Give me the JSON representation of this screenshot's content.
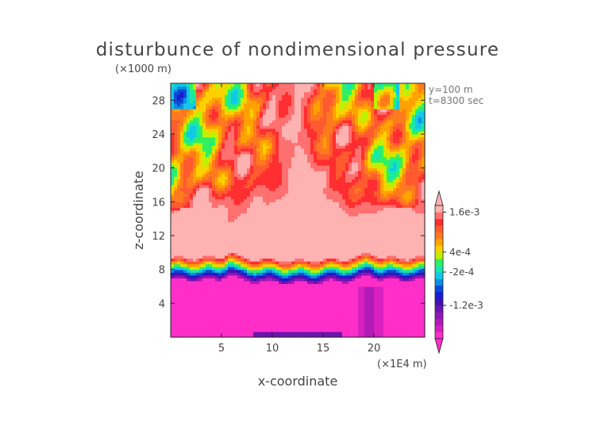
{
  "chart_data": {
    "type": "heatmap",
    "title": "disturbunce of nondimensional pressure",
    "xlabel": "x-coordinate",
    "ylabel": "z-coordinate",
    "x_unit": "(×1E4 m)",
    "y_unit": "(×1000 m)",
    "annotations": [
      "y=100 m",
      "t=8300 sec"
    ],
    "xlim": [
      0,
      25
    ],
    "ylim": [
      0,
      30
    ],
    "xticks": [
      5,
      10,
      15,
      20
    ],
    "yticks": [
      4,
      8,
      12,
      16,
      20,
      24,
      28
    ],
    "colorbar": {
      "colors": [
        "#ff2ec9",
        "#d81fbf",
        "#b21ab8",
        "#8f16b4",
        "#6a14b1",
        "#4311b0",
        "#1a1ad0",
        "#0a4ad8",
        "#0c8ee0",
        "#10c8e8",
        "#18e8a8",
        "#30f060",
        "#c0f000",
        "#ffd000",
        "#ffa200",
        "#ff7a1e",
        "#ff5a30",
        "#ff2e30",
        "#ff7070",
        "#ffb2b2"
      ],
      "tick_labels": [
        "1.6e-3",
        "4e-4",
        "-2e-4",
        "-1.2e-3"
      ],
      "tick_values": [
        0.0016,
        0.0004,
        -0.0002,
        -0.0012
      ],
      "range": [
        -0.0022,
        0.0018
      ],
      "extend": "both"
    },
    "field_description_bands": [
      {
        "z_range": [
          0,
          7
        ],
        "level": "about -2e-3 (magenta/purple)"
      },
      {
        "z_range": [
          7,
          9.5
        ],
        "level": "-1e-3 to 0 (blue-cyan-green-yellow transition)"
      },
      {
        "z_range": [
          9.5,
          15
        ],
        "level": "about 1.8e-3 (light pink)"
      },
      {
        "z_range": [
          15,
          30
        ],
        "level": "1e-4 to 1.6e-3 (red/orange/yellow patches, light pink center column x=8-17)"
      }
    ]
  }
}
